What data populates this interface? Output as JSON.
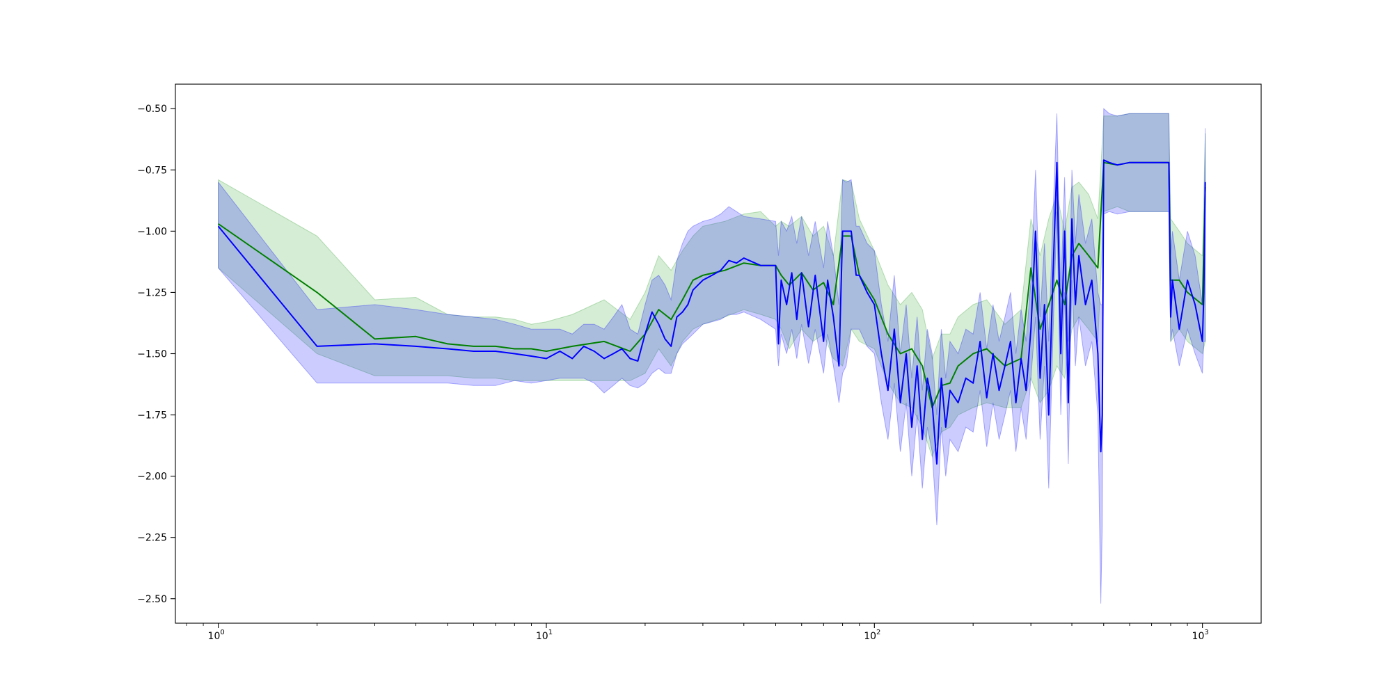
{
  "chart_data": {
    "type": "line",
    "title": "",
    "xlabel": "",
    "ylabel": "",
    "xscale": "log",
    "xlim": [
      0.74,
      1510
    ],
    "ylim": [
      -2.6,
      -0.4
    ],
    "grid": false,
    "legend": "none",
    "x_ticks": [
      1,
      10,
      100,
      1000
    ],
    "x_tick_labels": [
      {
        "base": "10",
        "exp": "0"
      },
      {
        "base": "10",
        "exp": "1"
      },
      {
        "base": "10",
        "exp": "2"
      },
      {
        "base": "10",
        "exp": "3"
      }
    ],
    "y_ticks": [
      -0.5,
      -0.75,
      -1.0,
      -1.25,
      -1.5,
      -1.75,
      -2.0,
      -2.25,
      -2.5
    ],
    "y_tick_labels": [
      "−0.50",
      "−0.75",
      "−1.00",
      "−1.25",
      "−1.50",
      "−1.75",
      "−2.00",
      "−2.25",
      "−2.50"
    ],
    "series": [
      {
        "color": "#008000",
        "band_color": "#2ca02c",
        "x": [
          1,
          2,
          3,
          4,
          5,
          6,
          7,
          8,
          9,
          10,
          12,
          15,
          18,
          20,
          22,
          24,
          26,
          28,
          30,
          35,
          40,
          45,
          50,
          52,
          55,
          60,
          65,
          70,
          75,
          80,
          85,
          90,
          100,
          110,
          120,
          130,
          140,
          150,
          160,
          170,
          180,
          200,
          220,
          250,
          280,
          300,
          320,
          340,
          360,
          380,
          400,
          420,
          450,
          480,
          500,
          550,
          600,
          700,
          790,
          800,
          850,
          900,
          1000,
          1020
        ],
        "y": [
          -0.97,
          -1.25,
          -1.44,
          -1.43,
          -1.46,
          -1.47,
          -1.47,
          -1.48,
          -1.48,
          -1.49,
          -1.47,
          -1.45,
          -1.49,
          -1.42,
          -1.32,
          -1.36,
          -1.28,
          -1.2,
          -1.18,
          -1.16,
          -1.13,
          -1.14,
          -1.14,
          -1.18,
          -1.22,
          -1.17,
          -1.24,
          -1.21,
          -1.3,
          -1.02,
          -1.02,
          -1.18,
          -1.28,
          -1.42,
          -1.5,
          -1.48,
          -1.55,
          -1.72,
          -1.63,
          -1.62,
          -1.55,
          -1.5,
          -1.48,
          -1.55,
          -1.52,
          -1.15,
          -1.4,
          -1.3,
          -1.2,
          -1.3,
          -1.1,
          -1.05,
          -1.1,
          -1.15,
          -0.72,
          -0.73,
          -0.72,
          -0.72,
          -0.72,
          -1.2,
          -1.2,
          -1.25,
          -1.3,
          -0.82
        ],
        "lower": [
          -1.15,
          -1.5,
          -1.59,
          -1.59,
          -1.59,
          -1.6,
          -1.6,
          -1.61,
          -1.61,
          -1.61,
          -1.61,
          -1.61,
          -1.61,
          -1.58,
          -1.48,
          -1.55,
          -1.45,
          -1.4,
          -1.38,
          -1.35,
          -1.32,
          -1.34,
          -1.36,
          -1.4,
          -1.48,
          -1.4,
          -1.45,
          -1.42,
          -1.52,
          -1.55,
          -1.4,
          -1.45,
          -1.48,
          -1.62,
          -1.7,
          -1.72,
          -1.8,
          -1.92,
          -1.82,
          -1.8,
          -1.75,
          -1.72,
          -1.7,
          -1.72,
          -1.72,
          -1.6,
          -1.7,
          -1.65,
          -1.55,
          -1.6,
          -1.4,
          -1.35,
          -1.4,
          -1.45,
          -0.92,
          -0.9,
          -0.92,
          -0.92,
          -0.92,
          -1.45,
          -1.4,
          -1.45,
          -1.5,
          -1.45
        ],
        "upper": [
          -0.79,
          -1.02,
          -1.28,
          -1.27,
          -1.34,
          -1.35,
          -1.35,
          -1.36,
          -1.38,
          -1.37,
          -1.34,
          -1.28,
          -1.36,
          -1.25,
          -1.1,
          -1.16,
          -1.08,
          -1.02,
          -0.98,
          -0.96,
          -0.93,
          -0.92,
          -0.98,
          -0.96,
          -0.98,
          -0.94,
          -1.02,
          -0.98,
          -1.1,
          -0.79,
          -0.8,
          -0.95,
          -1.08,
          -1.22,
          -1.3,
          -1.25,
          -1.32,
          -1.52,
          -1.42,
          -1.42,
          -1.35,
          -1.3,
          -1.28,
          -1.38,
          -1.32,
          -0.95,
          -1.1,
          -0.95,
          -0.85,
          -1.0,
          -0.82,
          -0.8,
          -0.85,
          -0.95,
          -0.53,
          -0.53,
          -0.52,
          -0.52,
          -0.52,
          -0.95,
          -1.0,
          -1.05,
          -1.1,
          -0.6
        ]
      },
      {
        "color": "#0000ff",
        "band_color": "#0000ff",
        "x": [
          1,
          2,
          3,
          4,
          5,
          6,
          7,
          8,
          9,
          10,
          11,
          12,
          13,
          14,
          15,
          16,
          17,
          18,
          19,
          20,
          21,
          22,
          23,
          24,
          25,
          26,
          27,
          28,
          30,
          32,
          34,
          36,
          38,
          40,
          45,
          50,
          51,
          52,
          54,
          56,
          58,
          60,
          63,
          66,
          70,
          72,
          75,
          78,
          80,
          82,
          85,
          88,
          90,
          95,
          100,
          105,
          110,
          115,
          120,
          125,
          130,
          135,
          140,
          145,
          150,
          155,
          160,
          165,
          170,
          180,
          190,
          200,
          210,
          220,
          230,
          240,
          250,
          260,
          270,
          280,
          290,
          300,
          310,
          320,
          330,
          340,
          350,
          360,
          370,
          380,
          390,
          400,
          410,
          420,
          440,
          460,
          480,
          490,
          495,
          500,
          520,
          550,
          600,
          650,
          700,
          750,
          790,
          800,
          810,
          850,
          900,
          950,
          1000,
          1010,
          1020
        ],
        "y": [
          -0.98,
          -1.47,
          -1.46,
          -1.47,
          -1.48,
          -1.49,
          -1.49,
          -1.5,
          -1.51,
          -1.52,
          -1.49,
          -1.52,
          -1.47,
          -1.49,
          -1.52,
          -1.5,
          -1.48,
          -1.52,
          -1.53,
          -1.42,
          -1.33,
          -1.38,
          -1.44,
          -1.47,
          -1.35,
          -1.33,
          -1.3,
          -1.24,
          -1.2,
          -1.18,
          -1.16,
          -1.12,
          -1.13,
          -1.11,
          -1.14,
          -1.14,
          -1.46,
          -1.2,
          -1.3,
          -1.17,
          -1.36,
          -1.17,
          -1.39,
          -1.18,
          -1.45,
          -1.2,
          -1.35,
          -1.55,
          -1.0,
          -1.0,
          -1.0,
          -1.18,
          -1.18,
          -1.25,
          -1.3,
          -1.5,
          -1.65,
          -1.4,
          -1.7,
          -1.5,
          -1.8,
          -1.55,
          -1.85,
          -1.6,
          -1.7,
          -1.95,
          -1.6,
          -1.8,
          -1.65,
          -1.7,
          -1.6,
          -1.62,
          -1.45,
          -1.68,
          -1.5,
          -1.65,
          -1.55,
          -1.45,
          -1.7,
          -1.52,
          -1.65,
          -1.4,
          -1.0,
          -1.6,
          -1.3,
          -1.75,
          -1.2,
          -0.72,
          -1.5,
          -1.0,
          -1.7,
          -0.95,
          -1.3,
          -1.1,
          -1.3,
          -1.2,
          -1.5,
          -1.9,
          -1.75,
          -0.71,
          -0.72,
          -0.73,
          -0.72,
          -0.72,
          -0.72,
          -0.72,
          -0.72,
          -1.35,
          -1.2,
          -1.4,
          -1.2,
          -1.3,
          -1.45,
          -1.25,
          -0.8
        ],
        "lower": [
          -1.15,
          -1.62,
          -1.62,
          -1.62,
          -1.62,
          -1.63,
          -1.63,
          -1.61,
          -1.62,
          -1.61,
          -1.6,
          -1.6,
          -1.6,
          -1.62,
          -1.66,
          -1.63,
          -1.6,
          -1.63,
          -1.64,
          -1.62,
          -1.58,
          -1.56,
          -1.58,
          -1.58,
          -1.5,
          -1.46,
          -1.44,
          -1.42,
          -1.38,
          -1.37,
          -1.36,
          -1.34,
          -1.34,
          -1.33,
          -1.36,
          -1.4,
          -1.55,
          -1.42,
          -1.5,
          -1.4,
          -1.52,
          -1.38,
          -1.54,
          -1.4,
          -1.58,
          -1.42,
          -1.55,
          -1.7,
          -1.58,
          -1.55,
          -1.4,
          -1.4,
          -1.4,
          -1.47,
          -1.5,
          -1.7,
          -1.85,
          -1.62,
          -1.9,
          -1.7,
          -2.0,
          -1.75,
          -2.05,
          -1.8,
          -1.9,
          -2.2,
          -1.8,
          -2.0,
          -1.85,
          -1.9,
          -1.8,
          -1.82,
          -1.65,
          -1.88,
          -1.7,
          -1.85,
          -1.75,
          -1.65,
          -1.9,
          -1.72,
          -1.85,
          -1.6,
          -1.35,
          -1.85,
          -1.55,
          -2.05,
          -1.45,
          -0.92,
          -1.75,
          -1.25,
          -1.95,
          -1.2,
          -1.55,
          -1.35,
          -1.55,
          -1.45,
          -1.75,
          -2.52,
          -2.2,
          -0.93,
          -0.92,
          -0.93,
          -0.92,
          -0.92,
          -0.92,
          -0.92,
          -0.92,
          -1.45,
          -1.4,
          -1.55,
          -1.4,
          -1.5,
          -1.58,
          -1.45,
          -1.45
        ],
        "upper": [
          -0.8,
          -1.32,
          -1.3,
          -1.32,
          -1.34,
          -1.35,
          -1.36,
          -1.38,
          -1.4,
          -1.4,
          -1.4,
          -1.42,
          -1.38,
          -1.38,
          -1.4,
          -1.35,
          -1.3,
          -1.4,
          -1.42,
          -1.3,
          -1.2,
          -1.18,
          -1.22,
          -1.28,
          -1.12,
          -1.05,
          -1.0,
          -0.98,
          -0.96,
          -0.95,
          -0.93,
          -0.9,
          -0.92,
          -0.94,
          -0.95,
          -0.96,
          -1.1,
          -0.96,
          -1.0,
          -0.94,
          -1.05,
          -0.94,
          -1.1,
          -0.96,
          -1.15,
          -0.96,
          -1.1,
          -1.3,
          -0.79,
          -0.8,
          -0.79,
          -0.98,
          -0.98,
          -1.05,
          -1.08,
          -1.3,
          -1.45,
          -1.18,
          -1.5,
          -1.3,
          -1.6,
          -1.35,
          -1.65,
          -1.4,
          -1.5,
          -1.75,
          -1.4,
          -1.6,
          -1.45,
          -1.5,
          -1.4,
          -1.42,
          -1.25,
          -1.48,
          -1.3,
          -1.45,
          -1.35,
          -1.25,
          -1.5,
          -1.32,
          -1.45,
          -1.2,
          -0.75,
          -1.35,
          -1.05,
          -1.45,
          -0.95,
          -0.52,
          -1.25,
          -0.78,
          -1.45,
          -0.75,
          -1.05,
          -0.85,
          -1.05,
          -0.95,
          -1.25,
          -1.3,
          -1.3,
          -0.5,
          -0.52,
          -0.53,
          -0.52,
          -0.52,
          -0.52,
          -0.52,
          -0.52,
          -1.1,
          -1.0,
          -1.2,
          -1.0,
          -1.1,
          -1.3,
          -1.05,
          -0.58
        ]
      }
    ]
  }
}
